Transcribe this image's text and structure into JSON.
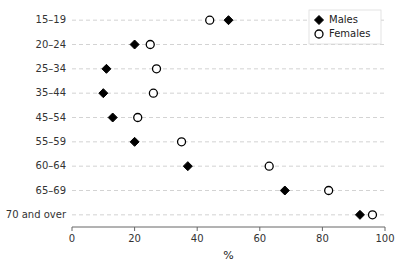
{
  "chart_data": {
    "type": "dot",
    "orientation": "horizontal",
    "xlabel": "%",
    "categories": [
      "15–19",
      "20–24",
      "25–34",
      "35–44",
      "45–54",
      "55–59",
      "60–64",
      "65–69",
      "70 and over"
    ],
    "series": [
      {
        "name": "Males",
        "color": "#000000",
        "marker": "diamond",
        "values": [
          50,
          20,
          11,
          10,
          13,
          20,
          37,
          68,
          92
        ]
      },
      {
        "name": "Females",
        "color": "#000000",
        "marker": "circle",
        "values": [
          44,
          25,
          27,
          26,
          21,
          35,
          63,
          82,
          96
        ]
      }
    ],
    "xlim": [
      0,
      100
    ],
    "xticks": [
      0,
      20,
      40,
      60,
      80,
      100
    ],
    "grid": true,
    "legend": "upper right"
  }
}
